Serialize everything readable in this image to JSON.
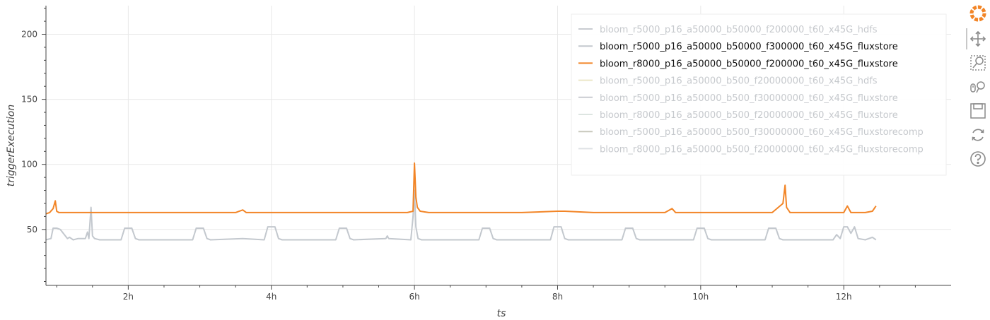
{
  "chart_data": {
    "type": "line",
    "xlabel": "ts",
    "ylabel": "triggerExecution",
    "x_unit": "hours",
    "xlim": [
      0.85,
      13.5
    ],
    "ylim": [
      7,
      222
    ],
    "x_ticks": [
      {
        "value": 2,
        "label": "2h"
      },
      {
        "value": 4,
        "label": "4h"
      },
      {
        "value": 6,
        "label": "6h"
      },
      {
        "value": 8,
        "label": "8h"
      },
      {
        "value": 10,
        "label": "10h"
      },
      {
        "value": 12,
        "label": "12h"
      }
    ],
    "y_ticks": [
      {
        "value": 50,
        "label": "50"
      },
      {
        "value": 100,
        "label": "100"
      },
      {
        "value": 150,
        "label": "150"
      },
      {
        "value": 200,
        "label": "200"
      }
    ],
    "grid": true,
    "legend_position": "top-right",
    "series": [
      {
        "name": "bloom_r5000_p16_a50000_b50000_f200000_t60_x45G_hdfs",
        "color": "#c9ccd1",
        "visible": false,
        "values": []
      },
      {
        "name": "bloom_r5000_p16_a50000_b50000_f300000_t60_x45G_fluxstore",
        "color": "#c3c8ce",
        "visible": true,
        "x": [
          0.85,
          0.92,
          0.95,
          1.0,
          1.05,
          1.15,
          1.18,
          1.23,
          1.3,
          1.4,
          1.43,
          1.45,
          1.48,
          1.5,
          1.53,
          1.6,
          1.9,
          1.95,
          2.05,
          2.1,
          2.15,
          2.5,
          2.9,
          2.95,
          3.05,
          3.1,
          3.15,
          3.6,
          3.9,
          3.95,
          4.05,
          4.1,
          4.15,
          4.9,
          4.95,
          5.05,
          5.1,
          5.15,
          5.6,
          5.62,
          5.64,
          5.95,
          5.98,
          6.0,
          6.02,
          6.05,
          6.1,
          6.9,
          6.95,
          7.05,
          7.1,
          7.15,
          7.9,
          7.95,
          8.05,
          8.1,
          8.15,
          8.9,
          8.95,
          9.05,
          9.1,
          9.15,
          9.9,
          9.95,
          10.05,
          10.1,
          10.15,
          10.9,
          10.95,
          11.05,
          11.1,
          11.15,
          11.7,
          11.85,
          11.9,
          11.95,
          12.0,
          12.05,
          12.1,
          12.15,
          12.2,
          12.3,
          12.4,
          12.45
        ],
        "values": [
          42,
          43,
          51,
          51,
          50,
          43,
          44,
          42,
          43,
          43,
          48,
          43,
          67,
          45,
          43,
          42,
          42,
          51,
          51,
          43,
          42,
          42,
          42,
          51,
          51,
          43,
          42,
          43,
          42,
          52,
          52,
          43,
          42,
          42,
          51,
          51,
          43,
          42,
          43,
          45,
          43,
          42,
          60,
          80,
          52,
          43,
          42,
          42,
          51,
          51,
          43,
          42,
          42,
          52,
          52,
          43,
          42,
          42,
          51,
          51,
          43,
          42,
          42,
          51,
          51,
          43,
          42,
          42,
          51,
          51,
          43,
          42,
          42,
          42,
          46,
          43,
          52,
          52,
          47,
          52,
          43,
          42,
          44,
          42
        ]
      },
      {
        "name": "bloom_r8000_p16_a50000_b50000_f200000_t60_x45G_fluxstore",
        "color": "#f28527",
        "visible": true,
        "x": [
          0.85,
          0.9,
          0.95,
          0.98,
          1.0,
          1.03,
          1.1,
          1.5,
          2.0,
          2.5,
          3.0,
          3.5,
          3.6,
          3.65,
          4.0,
          4.5,
          5.0,
          5.5,
          5.9,
          5.98,
          6.0,
          6.02,
          6.04,
          6.08,
          6.2,
          6.5,
          7.0,
          7.5,
          8.0,
          8.1,
          8.5,
          9.0,
          9.5,
          9.6,
          9.65,
          10.0,
          10.5,
          11.0,
          11.15,
          11.18,
          11.2,
          11.25,
          11.5,
          11.9,
          12.0,
          12.05,
          12.1,
          12.3,
          12.4,
          12.45
        ],
        "values": [
          62,
          63,
          66,
          72,
          64,
          63,
          63,
          63,
          63,
          63,
          63,
          63,
          65,
          63,
          63,
          63,
          63,
          63,
          63,
          64,
          101,
          75,
          67,
          64,
          63,
          63,
          63,
          63,
          64,
          64,
          63,
          63,
          63,
          66,
          63,
          63,
          63,
          63,
          70,
          84,
          67,
          63,
          63,
          63,
          63,
          68,
          63,
          63,
          64,
          68
        ]
      },
      {
        "name": "bloom_r5000_p16_a50000_b500_f20000000_t60_x45G_hdfs",
        "color": "#ece6c8",
        "visible": false,
        "values": []
      },
      {
        "name": "bloom_r5000_p16_a50000_b500_f30000000_t60_x45G_fluxstore",
        "color": "#c9ccd1",
        "visible": false,
        "values": []
      },
      {
        "name": "bloom_r8000_p16_a50000_b500_f20000000_t60_x45G_fluxstore",
        "color": "#dde5e1",
        "visible": false,
        "values": []
      },
      {
        "name": "bloom_r5000_p16_a50000_b500_f30000000_t60_x45G_fluxstorecomp",
        "color": "#c8c8bc",
        "visible": false,
        "values": []
      },
      {
        "name": "bloom_r8000_p16_a50000_b500_f20000000_t60_x45G_fluxstorecomp",
        "color": "#dfe2e5",
        "visible": false,
        "values": []
      }
    ]
  },
  "toolbar": {
    "logo_icon": "bokeh-logo-icon",
    "tools": [
      "pan-icon",
      "box-zoom-icon",
      "wheel-zoom-icon",
      "save-icon",
      "reset-icon",
      "help-icon"
    ]
  },
  "colors": {
    "visible_legend_text": "#111111",
    "muted_legend_text": "#c6c9cd",
    "grid": "#e8e8e8",
    "axis": "#444444",
    "logo": "#f28527"
  }
}
